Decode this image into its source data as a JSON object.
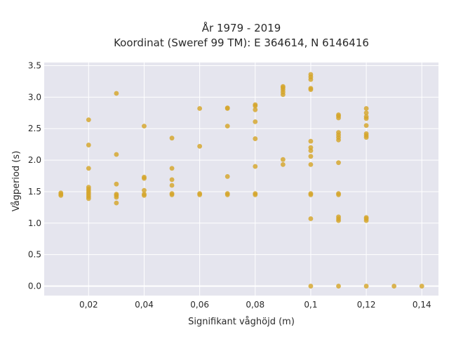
{
  "chart_data": {
    "type": "scatter",
    "title": "År 1979 - 2019",
    "subtitle": "Koordinat (Sweref 99 TM): E 364614, N 6146416",
    "xlabel": "Signifikant våghöjd (m)",
    "ylabel": "Vågperiod (s)",
    "xlim": [
      0.004,
      0.146
    ],
    "ylim": [
      -0.15,
      3.55
    ],
    "x_ticks": [
      0.02,
      0.04,
      0.06,
      0.08,
      0.1,
      0.12,
      0.14
    ],
    "x_tick_labels": [
      "0,02",
      "0,04",
      "0,06",
      "0,08",
      "0,1",
      "0,12",
      "0,14"
    ],
    "y_ticks": [
      0,
      0.5,
      1,
      1.5,
      2,
      2.5,
      3,
      3.5
    ],
    "y_tick_labels": [
      "0.0",
      "0.5",
      "1.0",
      "1.5",
      "2.0",
      "2.5",
      "3.0",
      "3.5"
    ],
    "grid": true,
    "background_color": "#e5e5ee",
    "marker_color": "#d4a52a",
    "points": [
      [
        0.01,
        1.44
      ],
      [
        0.01,
        1.46
      ],
      [
        0.01,
        1.48
      ],
      [
        0.02,
        1.39
      ],
      [
        0.02,
        1.42
      ],
      [
        0.02,
        1.45
      ],
      [
        0.02,
        1.48
      ],
      [
        0.02,
        1.51
      ],
      [
        0.02,
        1.54
      ],
      [
        0.02,
        1.57
      ],
      [
        0.02,
        1.87
      ],
      [
        0.02,
        2.24
      ],
      [
        0.02,
        2.64
      ],
      [
        0.03,
        1.32
      ],
      [
        0.03,
        1.41
      ],
      [
        0.03,
        1.44
      ],
      [
        0.03,
        1.46
      ],
      [
        0.03,
        1.62
      ],
      [
        0.03,
        2.09
      ],
      [
        0.03,
        3.06
      ],
      [
        0.04,
        1.44
      ],
      [
        0.04,
        1.46
      ],
      [
        0.04,
        1.52
      ],
      [
        0.04,
        1.71
      ],
      [
        0.04,
        1.73
      ],
      [
        0.04,
        2.54
      ],
      [
        0.05,
        1.45
      ],
      [
        0.05,
        1.47
      ],
      [
        0.05,
        1.6
      ],
      [
        0.05,
        1.69
      ],
      [
        0.05,
        1.87
      ],
      [
        0.05,
        2.35
      ],
      [
        0.06,
        1.45
      ],
      [
        0.06,
        1.47
      ],
      [
        0.06,
        2.22
      ],
      [
        0.06,
        2.82
      ],
      [
        0.07,
        1.45
      ],
      [
        0.07,
        1.47
      ],
      [
        0.07,
        1.74
      ],
      [
        0.07,
        2.54
      ],
      [
        0.07,
        2.82
      ],
      [
        0.07,
        2.83
      ],
      [
        0.08,
        1.45
      ],
      [
        0.08,
        1.47
      ],
      [
        0.08,
        1.9
      ],
      [
        0.08,
        2.34
      ],
      [
        0.08,
        2.61
      ],
      [
        0.08,
        2.8
      ],
      [
        0.08,
        2.86
      ],
      [
        0.08,
        2.88
      ],
      [
        0.09,
        1.93
      ],
      [
        0.09,
        2.01
      ],
      [
        0.09,
        3.04
      ],
      [
        0.09,
        3.08
      ],
      [
        0.09,
        3.12
      ],
      [
        0.09,
        3.15
      ],
      [
        0.09,
        3.17
      ],
      [
        0.1,
        0.0
      ],
      [
        0.1,
        1.07
      ],
      [
        0.1,
        1.45
      ],
      [
        0.1,
        1.47
      ],
      [
        0.1,
        1.93
      ],
      [
        0.1,
        2.06
      ],
      [
        0.1,
        2.15
      ],
      [
        0.1,
        2.2
      ],
      [
        0.1,
        2.3
      ],
      [
        0.1,
        3.12
      ],
      [
        0.1,
        3.14
      ],
      [
        0.1,
        3.28
      ],
      [
        0.1,
        3.32
      ],
      [
        0.1,
        3.36
      ],
      [
        0.11,
        0.0
      ],
      [
        0.11,
        1.04
      ],
      [
        0.11,
        1.07
      ],
      [
        0.11,
        1.1
      ],
      [
        0.11,
        1.45
      ],
      [
        0.11,
        1.47
      ],
      [
        0.11,
        1.96
      ],
      [
        0.11,
        2.32
      ],
      [
        0.11,
        2.36
      ],
      [
        0.11,
        2.4
      ],
      [
        0.11,
        2.44
      ],
      [
        0.11,
        2.67
      ],
      [
        0.11,
        2.7
      ],
      [
        0.11,
        2.72
      ],
      [
        0.12,
        0.0
      ],
      [
        0.12,
        1.04
      ],
      [
        0.12,
        1.07
      ],
      [
        0.12,
        1.09
      ],
      [
        0.12,
        2.36
      ],
      [
        0.12,
        2.39
      ],
      [
        0.12,
        2.42
      ],
      [
        0.12,
        2.55
      ],
      [
        0.12,
        2.66
      ],
      [
        0.12,
        2.69
      ],
      [
        0.12,
        2.75
      ],
      [
        0.12,
        2.82
      ],
      [
        0.13,
        0.0
      ],
      [
        0.14,
        0.0
      ]
    ]
  }
}
